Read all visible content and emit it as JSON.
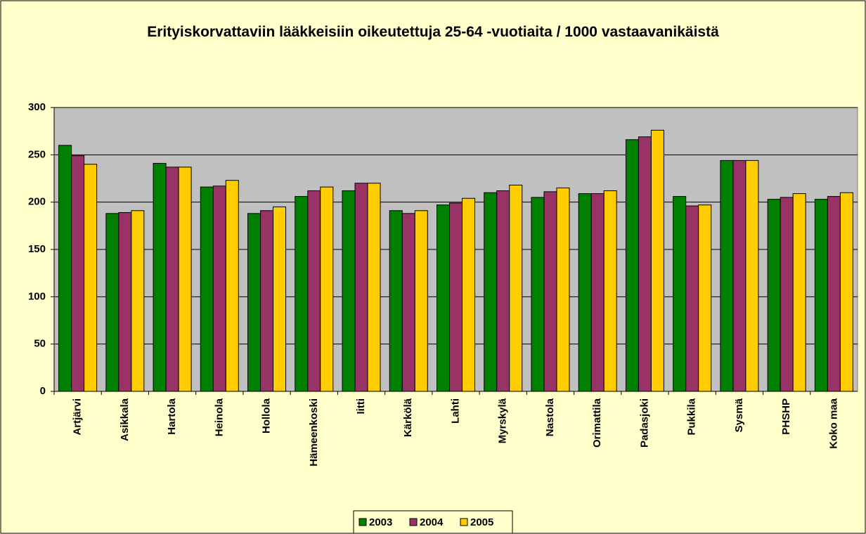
{
  "chart_data": {
    "type": "bar",
    "title": "Erityiskorvattaviin lääkkeisiin oikeutettuja 25-64 -vuotiaita / 1000 vastaavanikäistä",
    "categories": [
      "Artjärvi",
      "Asikkala",
      "Hartola",
      "Heinola",
      "Hollola",
      "Hämeenkoski",
      "Iitti",
      "Kärkölä",
      "Lahti",
      "Myrskylä",
      "Nastola",
      "Orimattila",
      "Padasjoki",
      "Pukkila",
      "Sysmä",
      "PHSHP",
      "Koko maa"
    ],
    "series": [
      {
        "name": "2003",
        "color": "#008000",
        "values": [
          260,
          188,
          241,
          216,
          188,
          206,
          212,
          191,
          197,
          210,
          205,
          209,
          266,
          206,
          244,
          203,
          203
        ]
      },
      {
        "name": "2004",
        "color": "#993366",
        "values": [
          249,
          189,
          237,
          217,
          191,
          212,
          220,
          188,
          199,
          212,
          211,
          209,
          269,
          196,
          244,
          205,
          206
        ]
      },
      {
        "name": "2005",
        "color": "#ffcc00",
        "values": [
          240,
          191,
          237,
          223,
          195,
          216,
          220,
          191,
          204,
          218,
          215,
          212,
          276,
          197,
          244,
          209,
          210
        ]
      }
    ],
    "ylim": [
      0,
      300
    ],
    "yticks": [
      0,
      50,
      100,
      150,
      200,
      250,
      300
    ],
    "grid": true,
    "legend": "bottom"
  }
}
